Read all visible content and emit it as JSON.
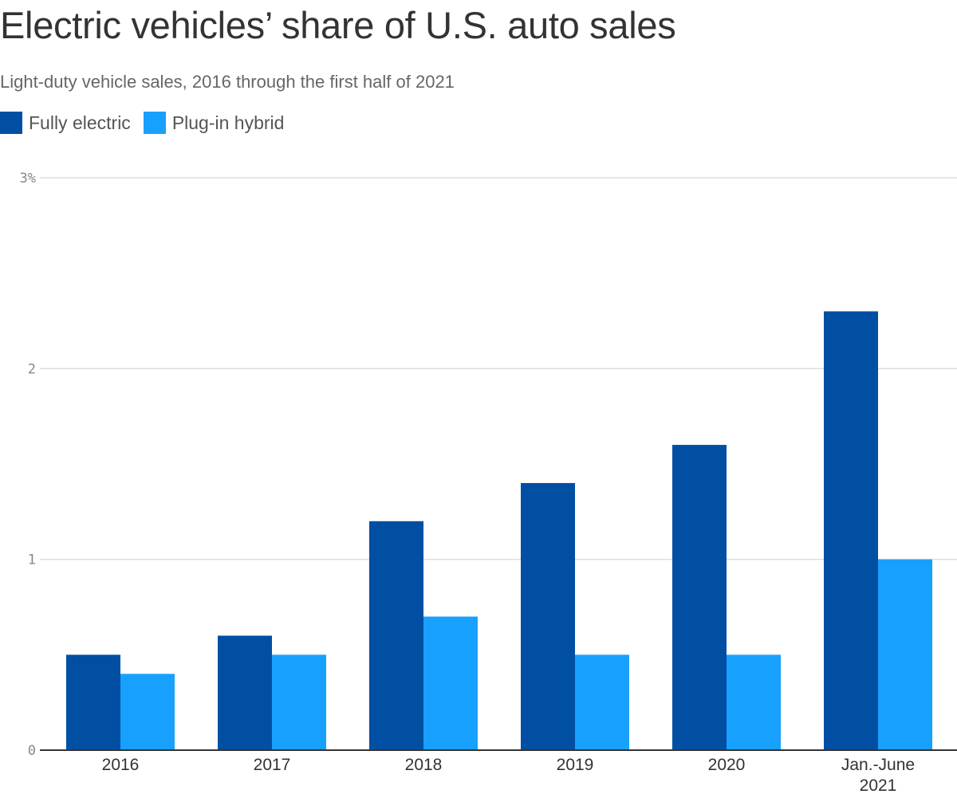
{
  "chart_data": {
    "type": "bar",
    "title": "Electric vehicles’ share of U.S. auto sales",
    "subtitle": "Light-duty vehicle sales, 2016 through the first half of 2021",
    "categories": [
      "2016",
      "2017",
      "2018",
      "2019",
      "2020",
      "Jan.-June 2021"
    ],
    "category_lines": [
      [
        "2016"
      ],
      [
        "2017"
      ],
      [
        "2018"
      ],
      [
        "2019"
      ],
      [
        "2020"
      ],
      [
        "Jan.-June",
        "2021"
      ]
    ],
    "series": [
      {
        "name": "Fully electric",
        "color": "#004fa3",
        "values": [
          0.5,
          0.6,
          1.2,
          1.4,
          1.6,
          2.3
        ]
      },
      {
        "name": "Plug-in hybrid",
        "color": "#18a0ff",
        "values": [
          0.4,
          0.5,
          0.7,
          0.5,
          0.5,
          1.0
        ]
      }
    ],
    "ylim": [
      0,
      3
    ],
    "yticks": [
      0,
      1,
      2,
      3
    ],
    "ytick_labels": [
      "0",
      "1",
      "2",
      "3%"
    ],
    "xlabel": "",
    "ylabel": "",
    "grid": true,
    "legend_position": "top-left"
  }
}
